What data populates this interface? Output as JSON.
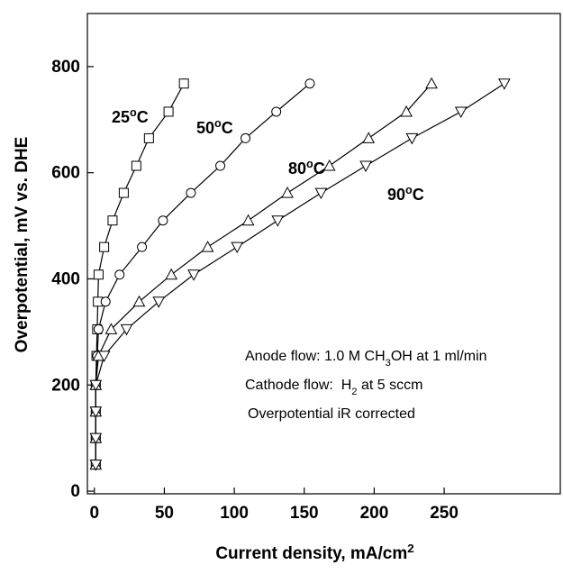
{
  "chart_data": {
    "type": "line",
    "xlabel": [
      {
        "text": "Current density, mA/cm"
      },
      {
        "text": "2",
        "shift": "sup"
      }
    ],
    "ylabel": "Overpotential, mV vs. DHE",
    "xlim": [
      -5,
      333
    ],
    "ylim": [
      -5,
      900
    ],
    "xticks": [
      0,
      50,
      100,
      150,
      200,
      250
    ],
    "yticks": [
      0,
      200,
      400,
      600,
      800
    ],
    "grid": false,
    "color": "#000000",
    "series": [
      {
        "name": [
          {
            "text": "25"
          },
          {
            "text": "o",
            "shift": "sup"
          },
          {
            "text": "C"
          }
        ],
        "marker": "square",
        "x": [
          1,
          1,
          1,
          1,
          1.5,
          2,
          2.5,
          3,
          7,
          13,
          21,
          30,
          39,
          53,
          64
        ],
        "values": [
          50,
          100,
          150,
          200,
          255,
          305,
          357,
          408,
          460,
          510,
          562,
          613,
          665,
          715,
          768
        ]
      },
      {
        "name": [
          {
            "text": "50"
          },
          {
            "text": "o",
            "shift": "sup"
          },
          {
            "text": "C"
          }
        ],
        "marker": "circle",
        "x": [
          1,
          1,
          1,
          1,
          2,
          3,
          8,
          18,
          34,
          49,
          69,
          90,
          108,
          130,
          154
        ],
        "values": [
          50,
          100,
          150,
          200,
          255,
          305,
          357,
          408,
          460,
          510,
          562,
          613,
          665,
          715,
          768
        ]
      },
      {
        "name": [
          {
            "text": "80"
          },
          {
            "text": "o",
            "shift": "sup"
          },
          {
            "text": "C"
          }
        ],
        "marker": "triangle-up",
        "x": [
          1,
          1,
          1,
          1,
          3,
          12,
          32,
          55,
          81,
          110,
          138,
          168,
          196,
          223,
          241
        ],
        "values": [
          50,
          100,
          150,
          200,
          255,
          305,
          357,
          408,
          460,
          510,
          562,
          613,
          665,
          715,
          768
        ]
      },
      {
        "name": [
          {
            "text": "90"
          },
          {
            "text": "o",
            "shift": "sup"
          },
          {
            "text": "C"
          }
        ],
        "marker": "triangle-down",
        "x": [
          1,
          1,
          1,
          1,
          7,
          23,
          46,
          71,
          102,
          131,
          162,
          194,
          227,
          262,
          293
        ],
        "values": [
          50,
          100,
          150,
          200,
          255,
          305,
          357,
          408,
          460,
          510,
          562,
          613,
          665,
          715,
          768
        ]
      }
    ],
    "annotations": [
      [
        {
          "text": "Anode flow: 1.0 M CH"
        },
        {
          "text": "3",
          "shift": "sub"
        },
        {
          "text": "OH at 1 ml/min"
        }
      ],
      [
        {
          "text": "Cathode flow:  H"
        },
        {
          "text": "2",
          "shift": "sub"
        },
        {
          "text": " at 5 sccm"
        }
      ],
      [
        {
          "text": "Overpotential iR corrected"
        }
      ]
    ]
  }
}
